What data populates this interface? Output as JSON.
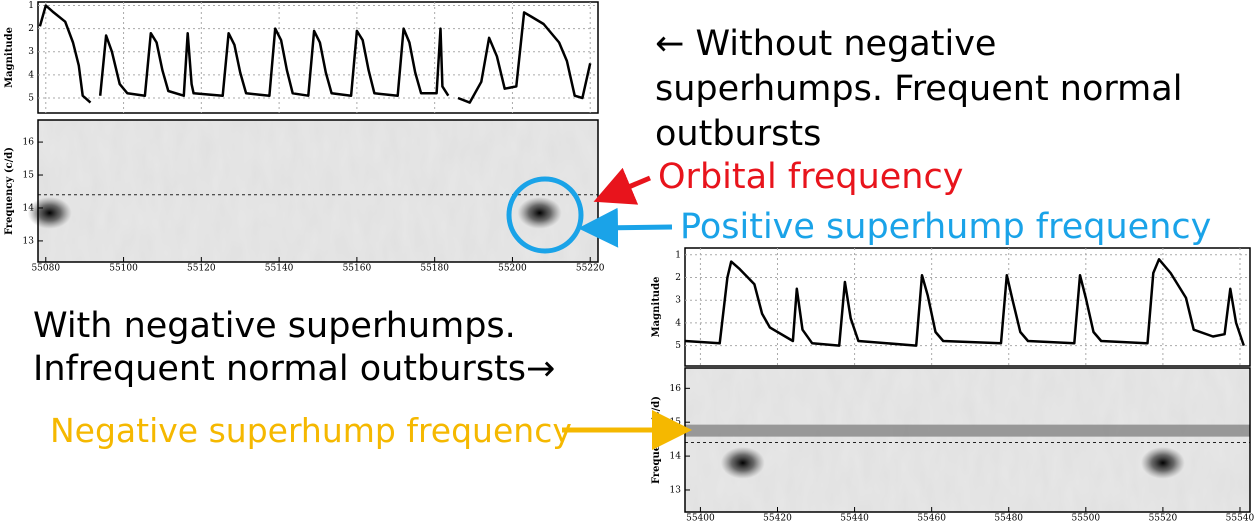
{
  "annotations": {
    "without_negative": [
      "← Without negative",
      "superhumps. Frequent normal",
      "outbursts"
    ],
    "orbital": "Orbital frequency",
    "positive": "Positive superhump frequency",
    "with_negative": [
      "With negative superhumps.",
      "Infrequent normal outbursts→"
    ],
    "negative": "Negative superhump frequency"
  },
  "chart_data": [
    {
      "type": "line",
      "color": "#000000",
      "ylabel": "Magnitude",
      "y_inverted": true,
      "xlim": [
        55078,
        55222
      ],
      "xticks": [
        55080,
        55100,
        55120,
        55140,
        55160,
        55180,
        55200,
        55220
      ],
      "ylim": [
        0.85,
        5.65
      ],
      "yticks": [
        1,
        2,
        3,
        4,
        5
      ],
      "x": [
        55078.5,
        55080,
        55082,
        55085,
        55087,
        55088.5,
        55089.5,
        55091.5,
        55092.5,
        55094,
        55095.5,
        55097,
        55099,
        55101,
        55105.5,
        55107,
        55108.5,
        55110,
        55111.5,
        55115.5,
        55116.5,
        55117.5,
        55118,
        55125.5,
        55127,
        55128.5,
        55130,
        55131.5,
        55137.5,
        55139,
        55140.5,
        55142,
        55143.5,
        55147.5,
        55149,
        55150.5,
        55152,
        55153.5,
        55158.5,
        55160,
        55161.5,
        55163,
        55164.5,
        55170.5,
        55172,
        55173.5,
        55175,
        55176.5,
        55180.5,
        55181.5,
        55182,
        55183.5,
        55185,
        55186,
        55189,
        55192,
        55194,
        55196,
        55198,
        55201,
        55203,
        55205,
        55208,
        55212,
        55214,
        55216,
        55218,
        55220
      ],
      "values": [
        1.9,
        1.0,
        1.3,
        1.7,
        2.6,
        3.6,
        4.9,
        5.2,
        null,
        4.9,
        2.3,
        3.0,
        4.4,
        4.8,
        4.9,
        2.2,
        2.6,
        3.8,
        4.7,
        4.9,
        2.2,
        4.4,
        4.8,
        4.9,
        2.2,
        2.7,
        3.9,
        4.8,
        4.9,
        2.0,
        2.5,
        3.8,
        4.8,
        4.9,
        2.1,
        2.6,
        3.9,
        4.8,
        4.9,
        2.1,
        2.5,
        3.8,
        4.8,
        4.9,
        2.0,
        2.6,
        3.9,
        4.8,
        4.8,
        2.0,
        4.5,
        4.9,
        null,
        5.0,
        5.2,
        4.3,
        2.4,
        3.2,
        4.6,
        4.5,
        1.3,
        1.5,
        1.8,
        2.6,
        3.4,
        4.9,
        5.0,
        3.5
      ],
      "frequency_panel": {
        "ylabel": "Frequency (c/d)",
        "ylim": [
          12.36,
          16.67
        ],
        "yticks": [
          13,
          14,
          15,
          16
        ],
        "orbital_frequency": 14.4
      }
    },
    {
      "type": "line",
      "color": "#000000",
      "ylabel": "Magnitude",
      "y_inverted": true,
      "xlim": [
        55396,
        55542.6
      ],
      "xticks": [
        55400,
        55420,
        55440,
        55460,
        55480,
        55500,
        55520,
        55540
      ],
      "ylim": [
        0.7,
        5.9
      ],
      "yticks": [
        1,
        2,
        3,
        4,
        5
      ],
      "x": [
        55396,
        55405,
        55407,
        55408,
        55410,
        55414,
        55416,
        55418,
        55422,
        55424,
        55425,
        55426.5,
        55429,
        55436,
        55437.5,
        55439,
        55441,
        55456,
        55457.5,
        55459,
        55461,
        55463,
        55478,
        55479.5,
        55481,
        55483,
        55485,
        55497,
        55498.5,
        55500,
        55502,
        55504,
        55516,
        55517.5,
        55519,
        55522,
        55526,
        55528,
        55533,
        55536,
        55537.5,
        55539,
        55541
      ],
      "values": [
        4.8,
        4.9,
        2.0,
        1.3,
        1.6,
        2.3,
        3.6,
        4.2,
        4.6,
        4.8,
        2.5,
        4.3,
        4.9,
        5.0,
        2.2,
        3.8,
        4.8,
        5.0,
        1.9,
        2.8,
        4.4,
        4.8,
        4.9,
        1.9,
        3.0,
        4.4,
        4.8,
        4.9,
        1.9,
        2.9,
        4.4,
        4.8,
        4.9,
        1.8,
        1.2,
        1.8,
        2.9,
        4.3,
        4.6,
        4.5,
        2.5,
        4.0,
        5.0
      ],
      "frequency_panel": {
        "ylabel": "Frequency (c/d)",
        "ylim": [
          12.35,
          16.6
        ],
        "yticks": [
          13,
          14,
          15,
          16
        ],
        "orbital_frequency": 14.4,
        "negative_superhump_frequency": 14.75
      }
    }
  ]
}
